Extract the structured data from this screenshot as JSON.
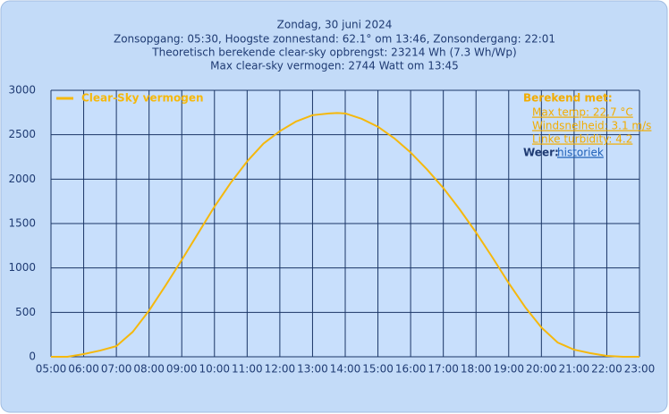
{
  "chart_data": {
    "type": "line",
    "title": "Zondag, 30 juni 2024",
    "subtitle": [
      "Zonsopgang: 05:30, Hoogste zonnestand: 62.1° om 13:46, Zonsondergang: 22:01",
      "Theoretisch berekende clear-sky opbrengst: 23214 Wh (7.3 Wh/Wp)",
      "Max clear-sky vermogen: 2744 Watt om 13:45"
    ],
    "x": [
      5,
      5.5,
      6,
      6.5,
      7,
      7.5,
      8,
      8.5,
      9,
      9.5,
      10,
      10.5,
      11,
      11.5,
      12,
      12.5,
      13,
      13.5,
      13.75,
      14,
      14.5,
      15,
      15.5,
      16,
      16.5,
      17,
      17.5,
      18,
      18.5,
      19,
      19.5,
      20,
      20.5,
      21,
      21.5,
      22,
      22.5,
      23
    ],
    "series": [
      {
        "name": "Clear-Sky vermogen",
        "color": "#f5b80c",
        "values": [
          0,
          0,
          30,
          70,
          120,
          280,
          520,
          800,
          1090,
          1390,
          1690,
          1960,
          2200,
          2400,
          2540,
          2650,
          2720,
          2740,
          2744,
          2740,
          2680,
          2590,
          2460,
          2300,
          2110,
          1900,
          1660,
          1400,
          1120,
          830,
          560,
          330,
          160,
          80,
          40,
          10,
          0,
          0
        ]
      }
    ],
    "xlim": [
      5,
      23
    ],
    "xticks": [
      {
        "value": 5,
        "label": "05:00"
      },
      {
        "value": 6,
        "label": "06:00"
      },
      {
        "value": 7,
        "label": "07:00"
      },
      {
        "value": 8,
        "label": "08:00"
      },
      {
        "value": 9,
        "label": "09:00"
      },
      {
        "value": 10,
        "label": "10:00"
      },
      {
        "value": 11,
        "label": "11:00"
      },
      {
        "value": 12,
        "label": "12:00"
      },
      {
        "value": 13,
        "label": "13:00"
      },
      {
        "value": 14,
        "label": "14:00"
      },
      {
        "value": 15,
        "label": "15:00"
      },
      {
        "value": 16,
        "label": "16:00"
      },
      {
        "value": 17,
        "label": "17:00"
      },
      {
        "value": 18,
        "label": "18:00"
      },
      {
        "value": 19,
        "label": "19:00"
      },
      {
        "value": 20,
        "label": "20:00"
      },
      {
        "value": 21,
        "label": "21:00"
      },
      {
        "value": 22,
        "label": "22:00"
      },
      {
        "value": 23,
        "label": "23:00"
      }
    ],
    "ylim": [
      0,
      3000
    ],
    "yticks": [
      0,
      500,
      1000,
      1500,
      2000,
      2500,
      3000
    ],
    "grid": true,
    "legend": "top-left",
    "annotations": {
      "heading": "Berekend met:",
      "items": [
        "Max temp: 22.7 °C",
        "Windsnelheid: 3.1 m/s",
        "Linke turbidity: 4.2"
      ],
      "weather_label": "Weer:",
      "weather_link": "historiek"
    }
  }
}
